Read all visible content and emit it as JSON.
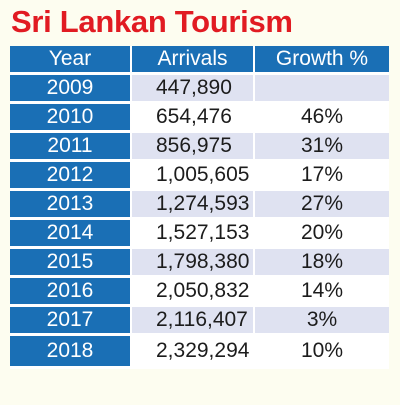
{
  "title": "Sri Lankan Tourism",
  "headers": {
    "year": "Year",
    "arrivals": "Arrivals",
    "growth": "Growth %"
  },
  "rows": [
    {
      "year": "2009",
      "arrivals": "447,890",
      "growth": ""
    },
    {
      "year": "2010",
      "arrivals": "654,476",
      "growth": "46%"
    },
    {
      "year": "2011",
      "arrivals": "856,975",
      "growth": "31%"
    },
    {
      "year": "2012",
      "arrivals": "1,005,605",
      "growth": "17%"
    },
    {
      "year": "2013",
      "arrivals": "1,274,593",
      "growth": "27%"
    },
    {
      "year": "2014",
      "arrivals": "1,527,153",
      "growth": "20%"
    },
    {
      "year": "2015",
      "arrivals": "1,798,380",
      "growth": "18%"
    },
    {
      "year": "2016",
      "arrivals": "2,050,832",
      "growth": "14%"
    },
    {
      "year": "2017",
      "arrivals": "2,116,407",
      "growth": "3%"
    },
    {
      "year": "2018",
      "arrivals": "2,329,294",
      "growth": "10%"
    }
  ],
  "colors": {
    "title": "#e11b22",
    "header_blue": "#1a6fb5",
    "row_shade": "#dfe2f1",
    "row_white": "#ffffff",
    "background": "#fdfdf0"
  }
}
